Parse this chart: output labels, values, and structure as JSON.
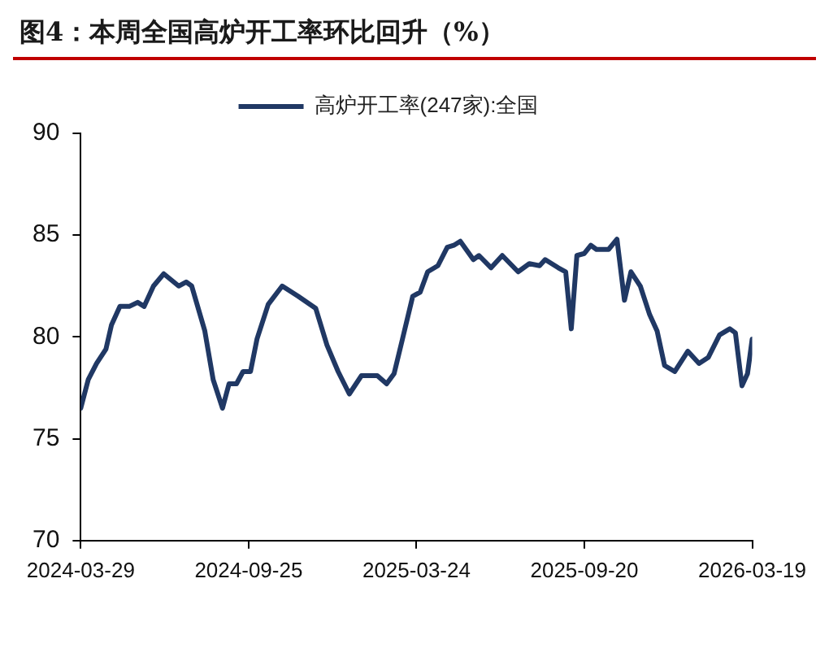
{
  "chart_data": {
    "type": "line",
    "title": "图4：本周全国高炉开工率环比回升（%）",
    "x": [
      "2024-03-29",
      "2024-04-06",
      "2024-04-15",
      "2024-04-25",
      "2024-05-01",
      "2024-05-10",
      "2024-05-20",
      "2024-05-29",
      "2024-06-05",
      "2024-06-15",
      "2024-06-26",
      "2024-07-12",
      "2024-07-20",
      "2024-07-26",
      "2024-08-09",
      "2024-08-18",
      "2024-08-28",
      "2024-09-04",
      "2024-09-12",
      "2024-09-19",
      "2024-09-27",
      "2024-10-04",
      "2024-10-16",
      "2024-10-31",
      "2024-11-17",
      "2024-12-06",
      "2024-12-18",
      "2024-12-30",
      "2025-01-11",
      "2025-01-24",
      "2025-02-10",
      "2025-02-20",
      "2025-02-28",
      "2025-03-09",
      "2025-03-20",
      "2025-03-28",
      "2025-04-05",
      "2025-04-16",
      "2025-04-26",
      "2025-05-03",
      "2025-05-10",
      "2025-05-24",
      "2025-05-30",
      "2025-06-12",
      "2025-06-24",
      "2025-07-11",
      "2025-07-23",
      "2025-08-03",
      "2025-08-09",
      "2025-08-23",
      "2025-08-31",
      "2025-09-06",
      "2025-09-12",
      "2025-09-20",
      "2025-09-27",
      "2025-10-03",
      "2025-10-16",
      "2025-10-25",
      "2025-11-02",
      "2025-11-09",
      "2025-11-19",
      "2025-11-29",
      "2025-12-07",
      "2025-12-15",
      "2025-12-26",
      "2026-01-09",
      "2026-01-21",
      "2026-01-31",
      "2026-02-12",
      "2026-02-23",
      "2026-03-01",
      "2026-03-08",
      "2026-03-14",
      "2026-03-19"
    ],
    "series": [
      {
        "name": "高炉开工率(247家):全国",
        "color": "#203864",
        "values": [
          76.5,
          77.9,
          78.7,
          79.4,
          80.6,
          81.5,
          81.5,
          81.7,
          81.5,
          82.5,
          83.1,
          82.5,
          82.7,
          82.5,
          80.3,
          77.9,
          76.5,
          77.7,
          77.7,
          78.3,
          78.3,
          79.9,
          81.6,
          82.5,
          82.0,
          81.4,
          79.6,
          78.3,
          77.2,
          78.1,
          78.1,
          77.7,
          78.2,
          79.9,
          82.0,
          82.2,
          83.2,
          83.5,
          84.4,
          84.5,
          84.7,
          83.8,
          84.0,
          83.4,
          84.0,
          83.2,
          83.6,
          83.5,
          83.8,
          83.4,
          83.2,
          80.4,
          84.0,
          84.1,
          84.5,
          84.3,
          84.3,
          84.8,
          81.8,
          83.2,
          82.5,
          81.1,
          80.3,
          78.6,
          78.3,
          79.3,
          78.7,
          79.0,
          80.1,
          80.4,
          80.2,
          77.6,
          78.2,
          79.9
        ]
      }
    ],
    "xlim": [
      "2024-03-29",
      "2026-03-19"
    ],
    "xticks": [
      "2024-03-29",
      "2024-09-25",
      "2025-03-24",
      "2025-09-20",
      "2026-03-19"
    ],
    "ylim": [
      70,
      90
    ],
    "yticks": [
      70,
      75,
      80,
      85,
      90
    ],
    "grid": false,
    "legend": "top",
    "marker": "none",
    "line_style": "solid"
  }
}
